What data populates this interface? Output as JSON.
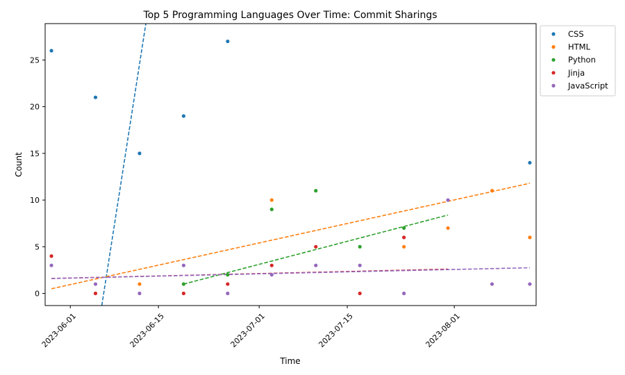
{
  "chart_data": {
    "type": "scatter",
    "title": "Top 5 Programming Languages Over Time: Commit Sharings",
    "xlabel": "Time",
    "ylabel": "Count",
    "xlim": [
      "2023-05-28",
      "2023-08-14"
    ],
    "ylim": [
      -1.3,
      28.9
    ],
    "x_ticks": [
      "2023-06-01",
      "2023-06-15",
      "2023-07-01",
      "2023-07-15",
      "2023-08-01"
    ],
    "y_ticks": [
      0,
      5,
      10,
      15,
      20,
      25
    ],
    "legend_position": "outside-top-right",
    "grid": false,
    "series": [
      {
        "name": "CSS",
        "color": "#1f77b4",
        "points": [
          [
            "2023-05-29",
            26
          ],
          [
            "2023-06-05",
            21
          ],
          [
            "2023-06-12",
            15
          ],
          [
            "2023-06-19",
            19
          ],
          [
            "2023-06-26",
            27
          ],
          [
            "2023-08-13",
            14
          ]
        ],
        "trend": [
          [
            "2023-06-06",
            -1.3
          ],
          [
            "2023-06-13",
            28.9
          ]
        ]
      },
      {
        "name": "HTML",
        "color": "#ff7f0e",
        "points": [
          [
            "2023-06-12",
            1
          ],
          [
            "2023-07-03",
            10
          ],
          [
            "2023-07-24",
            5
          ],
          [
            "2023-07-31",
            7
          ],
          [
            "2023-08-07",
            11
          ],
          [
            "2023-08-13",
            6
          ]
        ],
        "trend": [
          [
            "2023-05-29",
            0.5
          ],
          [
            "2023-08-13",
            11.8
          ]
        ]
      },
      {
        "name": "Python",
        "color": "#2ca02c",
        "points": [
          [
            "2023-06-19",
            1
          ],
          [
            "2023-06-26",
            2
          ],
          [
            "2023-07-03",
            9
          ],
          [
            "2023-07-10",
            11
          ],
          [
            "2023-07-17",
            5
          ],
          [
            "2023-07-24",
            7
          ]
        ],
        "trend": [
          [
            "2023-06-19",
            1.0
          ],
          [
            "2023-07-31",
            8.4
          ]
        ]
      },
      {
        "name": "Jinja",
        "color": "#d62728",
        "points": [
          [
            "2023-05-29",
            4
          ],
          [
            "2023-06-05",
            0
          ],
          [
            "2023-06-19",
            0
          ],
          [
            "2023-06-26",
            1
          ],
          [
            "2023-07-03",
            3
          ],
          [
            "2023-07-10",
            5
          ],
          [
            "2023-07-17",
            0
          ],
          [
            "2023-07-24",
            6
          ]
        ],
        "trend": [
          [
            "2023-05-29",
            1.6
          ],
          [
            "2023-07-31",
            2.6
          ]
        ]
      },
      {
        "name": "JavaScript",
        "color": "#9467bd",
        "points": [
          [
            "2023-05-29",
            3
          ],
          [
            "2023-06-05",
            1
          ],
          [
            "2023-06-12",
            0
          ],
          [
            "2023-06-19",
            3
          ],
          [
            "2023-06-26",
            0
          ],
          [
            "2023-07-03",
            2
          ],
          [
            "2023-07-10",
            3
          ],
          [
            "2023-07-17",
            3
          ],
          [
            "2023-07-24",
            0
          ],
          [
            "2023-07-31",
            10
          ],
          [
            "2023-08-07",
            1
          ],
          [
            "2023-08-13",
            1
          ]
        ],
        "trend": [
          [
            "2023-05-29",
            1.6
          ],
          [
            "2023-08-13",
            2.75
          ]
        ]
      }
    ]
  }
}
